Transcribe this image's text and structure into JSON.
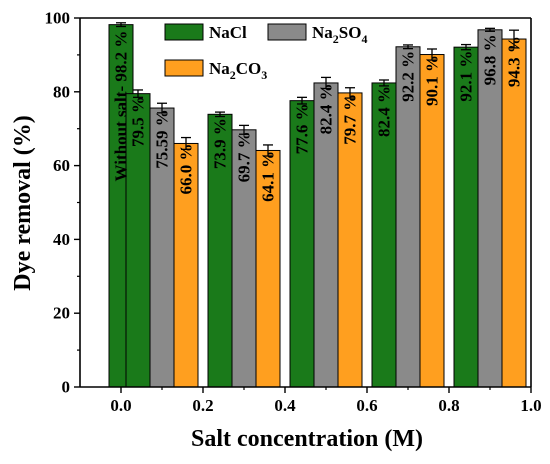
{
  "chart_data": {
    "type": "bar",
    "xlabel": "Salt concentration (M)",
    "ylabel": "Dye removal (%)",
    "ylim": [
      0,
      100
    ],
    "yticks": [
      0,
      20,
      40,
      60,
      80,
      100
    ],
    "xlim": [
      -0.1,
      1.0
    ],
    "xticks": [
      "0.0",
      "0.2",
      "0.4",
      "0.6",
      "0.8",
      "1.0"
    ],
    "baseline": {
      "name": "Without salt",
      "x": 0.0,
      "value": 98.2,
      "error": 0.5,
      "label": "Without salt- 98.2 %",
      "color": "#1a7a1a"
    },
    "categories": [
      0.1,
      0.3,
      0.5,
      0.7,
      0.9
    ],
    "series": [
      {
        "name": "NaCl",
        "color": "#1a7a1a",
        "values": [
          79.5,
          73.9,
          77.6,
          82.4,
          92.1
        ],
        "errors": [
          1.0,
          0.6,
          0.9,
          0.8,
          0.7
        ],
        "labels": [
          "79.5 %",
          "73.9 %",
          "77.6 %",
          "82.4 %",
          "92.1 %"
        ]
      },
      {
        "name": "Na2SO4",
        "color": "#8a8a8a",
        "values": [
          75.6,
          69.7,
          82.4,
          92.2,
          96.8
        ],
        "errors": [
          1.3,
          1.2,
          1.5,
          0.5,
          0.4
        ],
        "labels": [
          "75.59 %",
          "69.7 %",
          "82.4 %",
          "92.2 %",
          "96.8 %"
        ]
      },
      {
        "name": "Na2CO3",
        "color": "#ff9f1f",
        "values": [
          66.0,
          64.1,
          79.7,
          90.1,
          94.3
        ],
        "errors": [
          1.6,
          1.5,
          1.4,
          1.5,
          2.4
        ],
        "labels": [
          "66.0 %",
          "64.1 %",
          "79.7 %",
          "90.1 %",
          "94.3 %"
        ]
      }
    ],
    "legend": {
      "placement": "top-inside",
      "entries": [
        {
          "text": "NaCl",
          "sub": "",
          "tail": "",
          "sub2": "",
          "color": "#1a7a1a"
        },
        {
          "text": "Na",
          "sub": "2",
          "tail": "SO",
          "sub2": "4",
          "color": "#8a8a8a"
        },
        {
          "text": "Na",
          "sub": "2",
          "tail": "CO",
          "sub2": "3",
          "color": "#ff9f1f"
        }
      ]
    },
    "label_colors": {
      "dark": "#000000",
      "light": "#1a7a1a"
    }
  }
}
